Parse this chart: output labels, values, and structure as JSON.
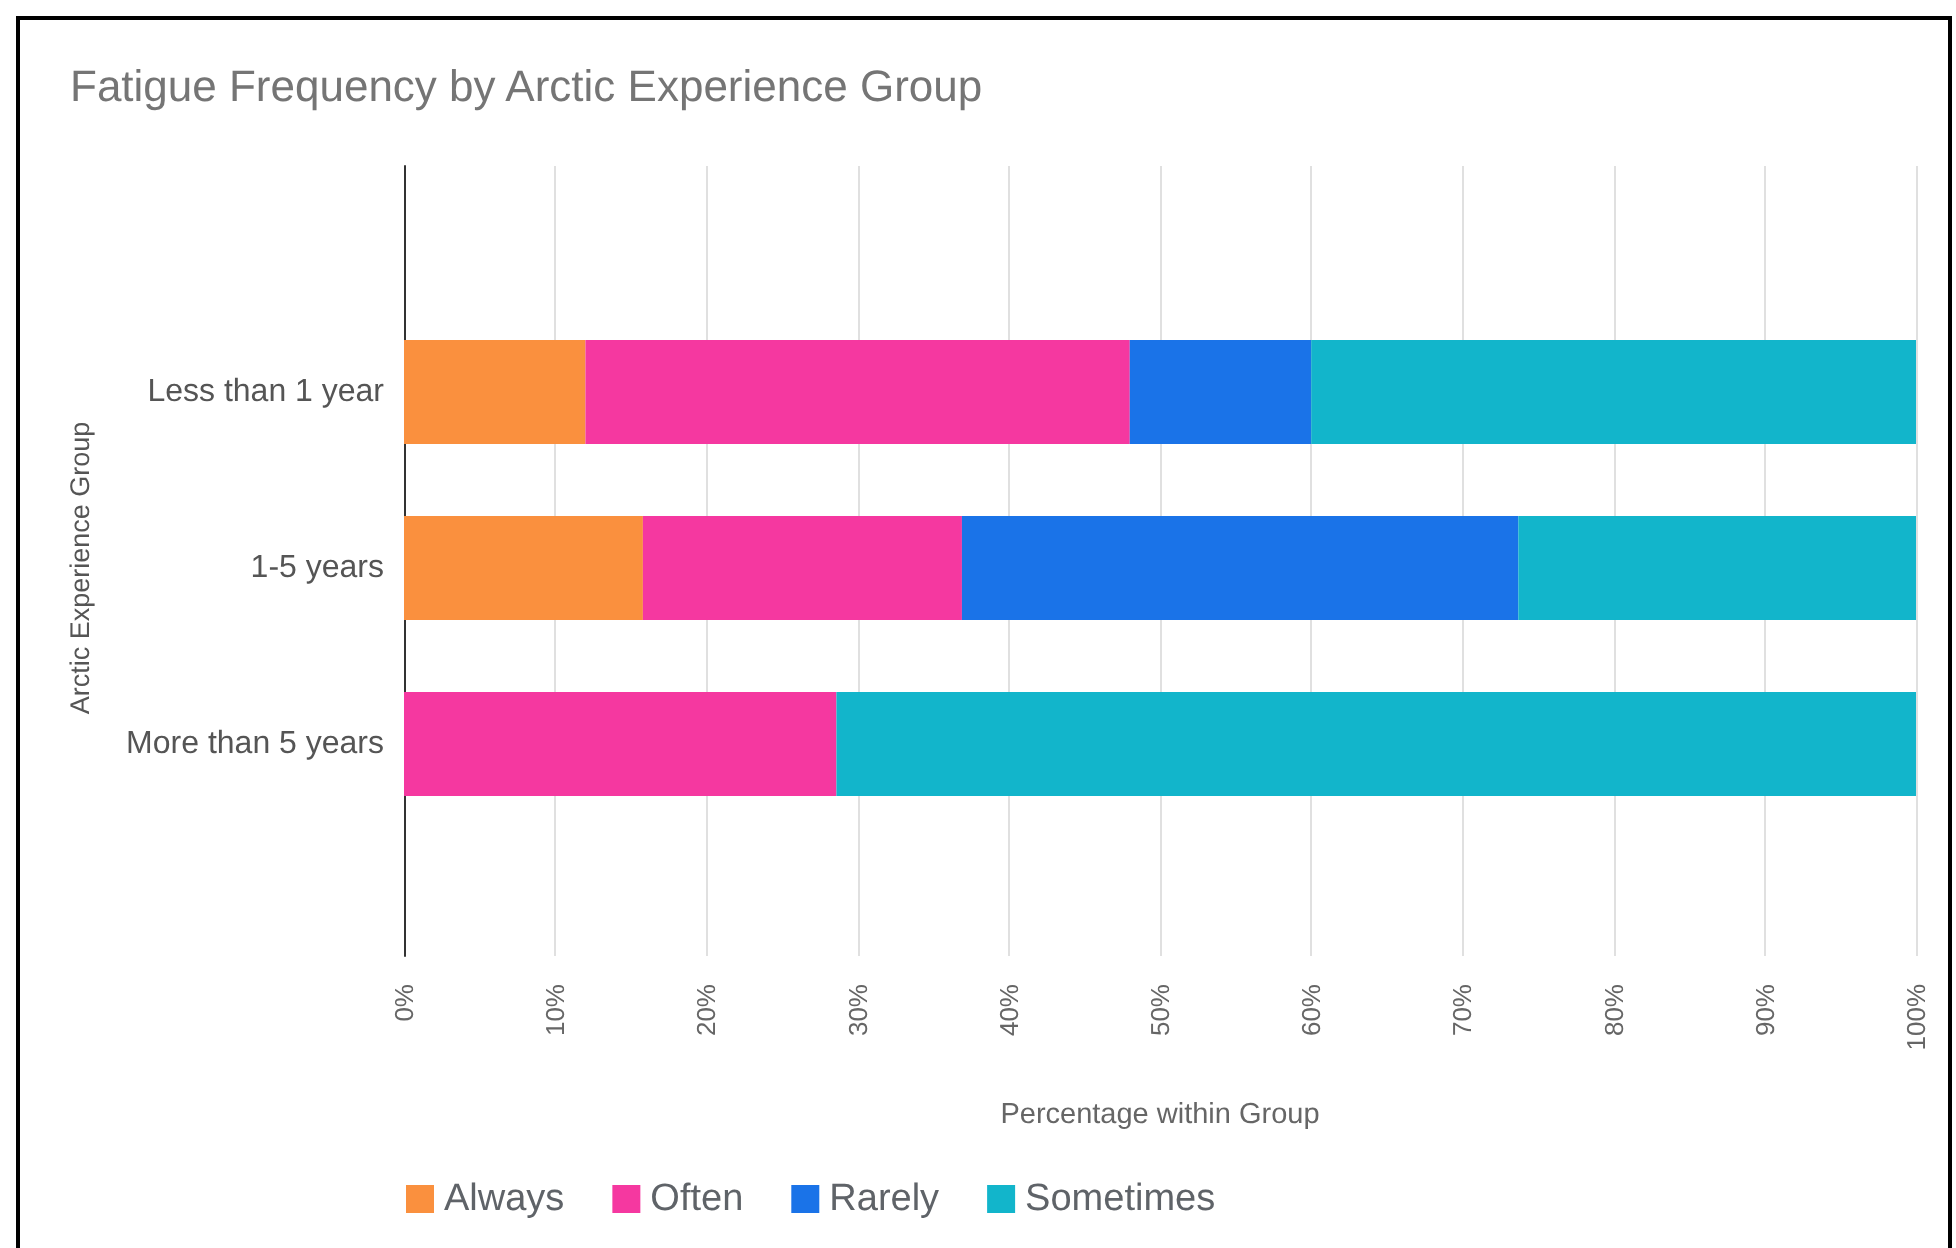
{
  "chart_data": {
    "type": "bar",
    "orientation": "horizontal",
    "stacked": true,
    "title": "Fatigue Frequency by Arctic Experience Group",
    "xlabel": "Percentage within Group",
    "ylabel": "Arctic Experience Group",
    "categories": [
      "Less than 1 year",
      "1-5 years",
      "More than 5 years"
    ],
    "series": [
      {
        "name": "Always",
        "color": "#fa903e",
        "values": [
          12,
          15.8,
          null
        ]
      },
      {
        "name": "Often",
        "color": "#f538a0",
        "values": [
          36,
          21.1,
          28.6
        ]
      },
      {
        "name": "Rarely",
        "color": "#1a73e8",
        "values": [
          12,
          36.8,
          null
        ]
      },
      {
        "name": "Sometimes",
        "color": "#12b5cb",
        "values": [
          40,
          26.3,
          71.4
        ]
      }
    ],
    "xlim": [
      0,
      100
    ],
    "xticks": [
      {
        "value": 0,
        "label": "0%"
      },
      {
        "value": 10,
        "label": "10%"
      },
      {
        "value": 20,
        "label": "20%"
      },
      {
        "value": 30,
        "label": "30%"
      },
      {
        "value": 40,
        "label": "40%"
      },
      {
        "value": 50,
        "label": "50%"
      },
      {
        "value": 60,
        "label": "60%"
      },
      {
        "value": 70,
        "label": "70%"
      },
      {
        "value": 80,
        "label": "80%"
      },
      {
        "value": 90,
        "label": "90%"
      },
      {
        "value": 100,
        "label": "100%"
      }
    ],
    "grid": "x",
    "legend": "bottom"
  }
}
